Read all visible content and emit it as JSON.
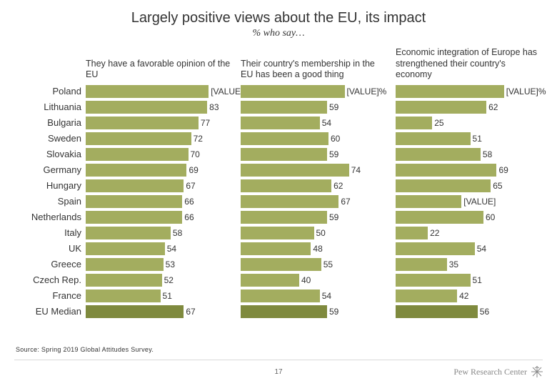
{
  "title": "Largely positive views about the EU, its impact",
  "subtitle": "% who say…",
  "source": "Source: Spring 2019 Global Attitudes Survey.",
  "page_number": "17",
  "footer_brand": "Pew Research Center",
  "bar_color": "#a3ad5f",
  "bar_color_median": "#7f8a3e",
  "text_color": "#333333",
  "countries": [
    "Poland",
    "Lithuania",
    "Bulgaria",
    "Sweden",
    "Slovakia",
    "Germany",
    "Hungary",
    "Spain",
    "Netherlands",
    "Italy",
    "UK",
    "Greece",
    "Czech Rep.",
    "France",
    "EU Median"
  ],
  "panels": [
    {
      "header": "They have a favorable opinion of the EU",
      "max": 100,
      "values": [
        "[VALUE]%",
        "83",
        "77",
        "72",
        "70",
        "69",
        "67",
        "66",
        "66",
        "58",
        "54",
        "53",
        "52",
        "51",
        "67"
      ],
      "numeric": [
        84,
        83,
        77,
        72,
        70,
        69,
        67,
        66,
        66,
        58,
        54,
        53,
        52,
        51,
        67
      ]
    },
    {
      "header": "Their country's membership in the EU has been a good thing",
      "max": 100,
      "values": [
        "[VALUE]%",
        "59",
        "54",
        "60",
        "59",
        "74",
        "62",
        "67",
        "59",
        "50",
        "48",
        "55",
        "40",
        "54",
        "59"
      ],
      "numeric": [
        71,
        59,
        54,
        60,
        59,
        74,
        62,
        67,
        59,
        50,
        48,
        55,
        40,
        54,
        59
      ]
    },
    {
      "header": "Economic integration of Europe has strengthened their country's economy",
      "max": 100,
      "values": [
        "[VALUE]%",
        "62",
        "25",
        "51",
        "58",
        "69",
        "65",
        "[VALUE]",
        "60",
        "22",
        "54",
        "35",
        "51",
        "42",
        "56"
      ],
      "numeric": [
        74,
        62,
        25,
        51,
        58,
        69,
        65,
        45,
        60,
        22,
        54,
        35,
        51,
        42,
        56
      ]
    }
  ]
}
